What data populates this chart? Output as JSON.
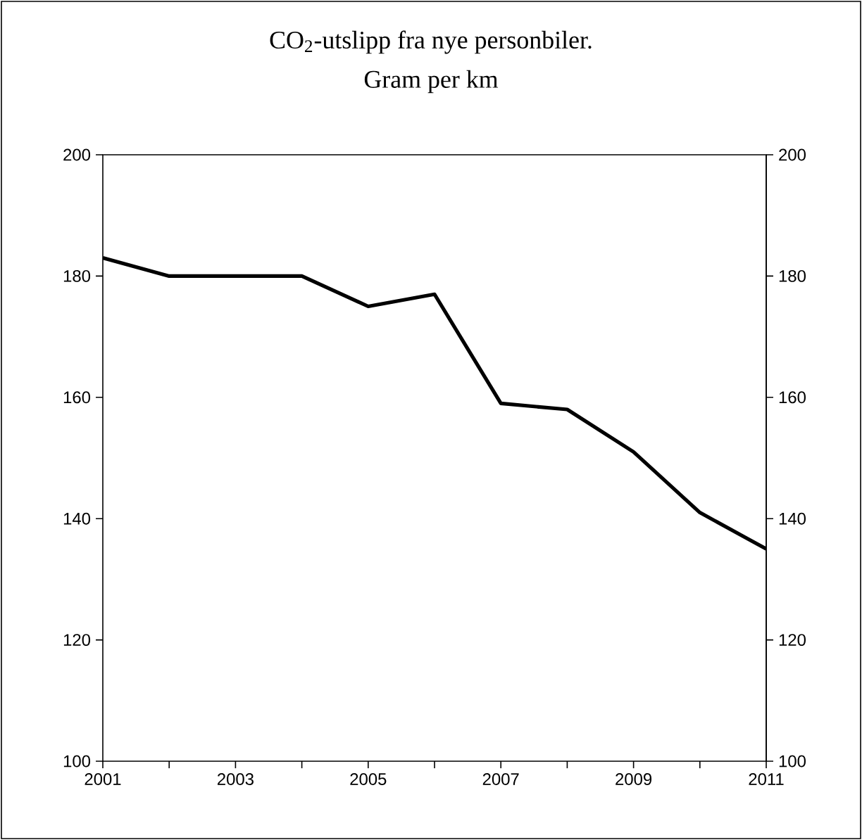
{
  "chart_data": {
    "type": "line",
    "title": "CO$_{2}$-utslipp fra nye personbiler.",
    "subtitle": "Gram per km",
    "x": [
      2001,
      2002,
      2003,
      2004,
      2005,
      2006,
      2007,
      2008,
      2009,
      2010,
      2011
    ],
    "series": [
      {
        "color": "#000000",
        "values": [
          183,
          180,
          180,
          180,
          175,
          177,
          159,
          158,
          151,
          141,
          135
        ]
      }
    ],
    "xlim": [
      2001,
      2011
    ],
    "xticks": [
      2001,
      {
        "value": 2002,
        "label": null
      },
      2003,
      {
        "value": 2004,
        "label": null
      },
      2005,
      {
        "value": 2006,
        "label": null
      },
      2007,
      {
        "value": 2008,
        "label": null
      },
      2009,
      {
        "value": 2010,
        "label": null
      },
      2011
    ],
    "ylim": [
      100,
      200
    ],
    "yticks": [
      100,
      120,
      140,
      160,
      180,
      200
    ],
    "y2lim": [
      100,
      200
    ],
    "y2ticks": [
      100,
      120,
      140,
      160,
      180,
      200
    ],
    "marker": "none",
    "line_style": "solid"
  }
}
